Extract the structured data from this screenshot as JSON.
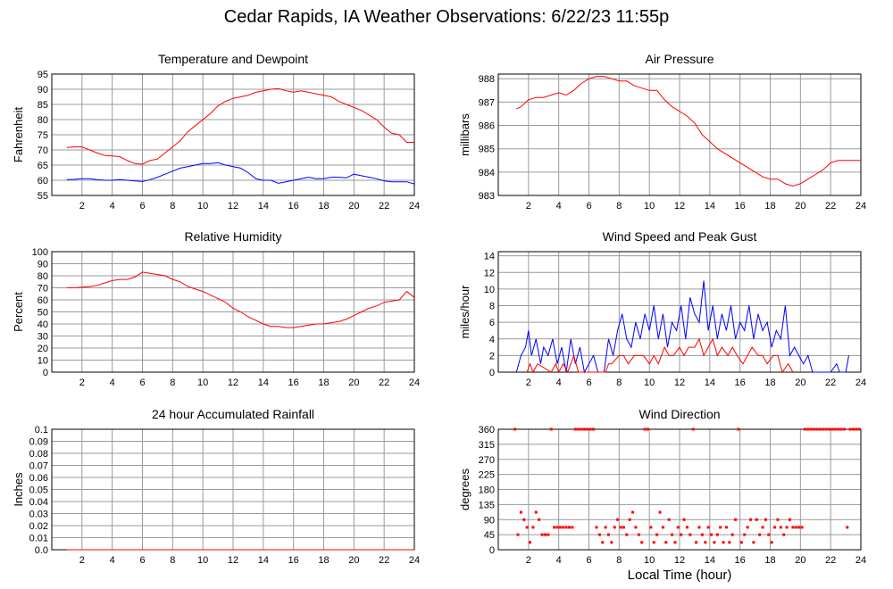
{
  "page": {
    "title": "Cedar Rapids, IA Weather Observations: 6/22/23 11:55p",
    "x_axis_title": "Local Time (hour)"
  },
  "colors": {
    "red": "#ff0000",
    "blue": "#0000ff",
    "grid": "#9a9a9a"
  },
  "chart_data": [
    {
      "id": "temp",
      "type": "line",
      "title": "Temperature and Dewpoint",
      "xlabel": "",
      "ylabel": "Fahrenheit",
      "xlim": [
        0,
        24
      ],
      "ylim": [
        55,
        95
      ],
      "yticks": [
        "55",
        "60",
        "65",
        "70",
        "75",
        "80",
        "85",
        "90",
        "95"
      ],
      "xticks": [
        "2",
        "4",
        "6",
        "8",
        "10",
        "12",
        "14",
        "16",
        "18",
        "20",
        "22",
        "24"
      ],
      "series": [
        {
          "color": "red",
          "x": [
            1,
            1.5,
            2,
            2.5,
            3,
            3.5,
            4,
            4.5,
            5,
            5.5,
            6,
            6.5,
            7,
            7.5,
            8,
            8.5,
            9,
            9.5,
            10,
            10.5,
            11,
            11.5,
            12,
            12.5,
            13,
            13.5,
            14,
            14.5,
            15,
            15.5,
            16,
            16.5,
            17,
            17.5,
            18,
            18.5,
            19,
            19.5,
            20,
            20.5,
            21,
            21.5,
            22,
            22.5,
            23,
            23.5,
            24
          ],
          "y": [
            70.8,
            71,
            71,
            70,
            69,
            68.2,
            68,
            67.8,
            66.5,
            65.5,
            65.3,
            66.5,
            67,
            69,
            71,
            73,
            76,
            78,
            80,
            82,
            84.5,
            86,
            87,
            87.5,
            88,
            89,
            89.5,
            90,
            90.2,
            89.5,
            89,
            89.5,
            89,
            88.5,
            88,
            87.5,
            86,
            85,
            84,
            83,
            81.5,
            80,
            77.5,
            75.5,
            75,
            72.5,
            72.5
          ]
        },
        {
          "color": "blue",
          "x": [
            1,
            1.5,
            2,
            2.5,
            3,
            3.5,
            4,
            4.5,
            5,
            5.5,
            6,
            6.5,
            7,
            7.5,
            8,
            8.5,
            9,
            9.5,
            10,
            10.5,
            11,
            11.5,
            12,
            12.5,
            13,
            13.5,
            14,
            14.5,
            15,
            15.5,
            16,
            16.5,
            17,
            17.5,
            18,
            18.5,
            19,
            19.5,
            20,
            20.5,
            21,
            21.5,
            22,
            22.5,
            23,
            23.5,
            24
          ],
          "y": [
            60.2,
            60.3,
            60.5,
            60.5,
            60.2,
            60,
            60,
            60.2,
            60,
            59.8,
            59.6,
            60.2,
            61,
            62,
            63,
            64,
            64.5,
            65,
            65.5,
            65.5,
            65.8,
            65,
            64.5,
            64,
            62.5,
            60.5,
            60,
            60,
            59,
            59.5,
            60,
            60.5,
            61,
            60.5,
            60.5,
            61,
            61,
            60.8,
            62,
            61.5,
            61,
            60.5,
            59.8,
            59.5,
            59.5,
            59.5,
            58.8
          ]
        }
      ]
    },
    {
      "id": "pressure",
      "type": "line",
      "title": "Air Pressure",
      "xlabel": "",
      "ylabel": "millibars",
      "xlim": [
        0,
        24
      ],
      "ylim": [
        983,
        988.2
      ],
      "yticks": [
        "983",
        "984",
        "985",
        "986",
        "987",
        "988"
      ],
      "xticks": [
        "2",
        "4",
        "6",
        "8",
        "10",
        "12",
        "14",
        "16",
        "18",
        "20",
        "22",
        "24"
      ],
      "series": [
        {
          "color": "red",
          "x": [
            1.2,
            1.5,
            2,
            2.5,
            3,
            3.5,
            4,
            4.5,
            5,
            5.5,
            6,
            6.5,
            7,
            7.5,
            8,
            8.5,
            9,
            9.5,
            10,
            10.5,
            11,
            11.5,
            12,
            12.5,
            13,
            13.5,
            14,
            14.5,
            15,
            15.5,
            16,
            16.5,
            17,
            17.5,
            18,
            18.5,
            19,
            19.5,
            20,
            20.5,
            21,
            21.5,
            22,
            22.5,
            23,
            23.5,
            24
          ],
          "y": [
            986.7,
            986.8,
            987.1,
            987.2,
            987.2,
            987.3,
            987.4,
            987.3,
            987.5,
            987.8,
            988,
            988.1,
            988.1,
            988,
            987.9,
            987.9,
            987.7,
            987.6,
            987.5,
            987.5,
            987.1,
            986.8,
            986.6,
            986.4,
            986.1,
            985.6,
            985.3,
            985,
            984.8,
            984.6,
            984.4,
            984.2,
            984,
            983.8,
            983.7,
            983.7,
            983.5,
            983.4,
            983.5,
            983.7,
            983.9,
            984.1,
            984.4,
            984.5,
            984.5,
            984.5,
            984.5
          ]
        }
      ]
    },
    {
      "id": "humidity",
      "type": "line",
      "title": "Relative Humidity",
      "xlabel": "",
      "ylabel": "Percent",
      "xlim": [
        0,
        24
      ],
      "ylim": [
        0,
        100
      ],
      "yticks": [
        "0",
        "10",
        "20",
        "30",
        "40",
        "50",
        "60",
        "70",
        "80",
        "90",
        "100"
      ],
      "xticks": [
        "2",
        "4",
        "6",
        "8",
        "10",
        "12",
        "14",
        "16",
        "18",
        "20",
        "22",
        "24"
      ],
      "series": [
        {
          "color": "red",
          "x": [
            1,
            1.5,
            2,
            2.5,
            3,
            3.5,
            4,
            4.5,
            5,
            5.5,
            6,
            6.5,
            7,
            7.5,
            8,
            8.5,
            9,
            9.5,
            10,
            10.5,
            11,
            11.5,
            12,
            12.5,
            13,
            13.5,
            14,
            14.5,
            15,
            15.5,
            16,
            16.5,
            17,
            17.5,
            18,
            18.5,
            19,
            19.5,
            20,
            20.5,
            21,
            21.5,
            22,
            22.5,
            23,
            23.5,
            24
          ],
          "y": [
            70,
            70,
            70.5,
            71,
            72,
            74,
            76,
            77,
            77,
            79,
            83,
            82,
            81,
            80,
            77,
            75,
            71,
            69,
            67,
            64,
            61,
            58,
            53,
            50,
            46,
            43,
            40,
            38,
            38,
            37,
            37,
            38,
            39,
            40,
            40,
            41,
            42,
            44,
            47,
            50,
            53,
            55,
            58,
            59,
            60,
            67,
            62
          ]
        }
      ]
    },
    {
      "id": "wind",
      "type": "line",
      "title": "Wind Speed and Peak Gust",
      "xlabel": "",
      "ylabel": "miles/hour",
      "xlim": [
        0,
        24
      ],
      "ylim": [
        0,
        14.5
      ],
      "yticks": [
        "0",
        "2",
        "4",
        "6",
        "8",
        "10",
        "12",
        "14"
      ],
      "xticks": [
        "2",
        "4",
        "6",
        "8",
        "10",
        "12",
        "14",
        "16",
        "18",
        "20",
        "22",
        "24"
      ],
      "series": [
        {
          "color": "blue",
          "x": [
            1.2,
            1.5,
            1.8,
            2,
            2.2,
            2.5,
            2.8,
            3,
            3.3,
            3.6,
            3.9,
            4.2,
            4.5,
            4.8,
            5.1,
            5.4,
            5.7,
            6,
            6.3,
            6.6,
            7,
            7.3,
            7.6,
            7.9,
            8.2,
            8.5,
            8.8,
            9.1,
            9.4,
            9.7,
            10,
            10.3,
            10.6,
            10.9,
            11.2,
            11.5,
            11.8,
            12.1,
            12.4,
            12.7,
            13,
            13.3,
            13.6,
            13.9,
            14.2,
            14.5,
            14.8,
            15.1,
            15.4,
            15.7,
            16,
            16.3,
            16.6,
            16.9,
            17.2,
            17.5,
            17.8,
            18.1,
            18.4,
            18.7,
            19,
            19.3,
            19.6,
            19.9,
            20.2,
            20.5,
            20.8,
            21,
            22,
            22.4,
            22.6,
            23,
            23.2
          ],
          "y": [
            0,
            2,
            3,
            5,
            2,
            4,
            1,
            3,
            2,
            4,
            1,
            3,
            0,
            4,
            1,
            3,
            0,
            1,
            2,
            0,
            0,
            4,
            2,
            5,
            7,
            4,
            3,
            6,
            4,
            7,
            5,
            8,
            4,
            7,
            3,
            6,
            5,
            8,
            4,
            9,
            7,
            6,
            11,
            5,
            8,
            4,
            7,
            5,
            8,
            4,
            6,
            5,
            8,
            4,
            7,
            5,
            6,
            3,
            5,
            4,
            8,
            2,
            3,
            2,
            1,
            2,
            0,
            0,
            0,
            1,
            0,
            0,
            2
          ]
        },
        {
          "color": "red",
          "x": [
            1.9,
            2.1,
            2.3,
            2.6,
            3.5,
            3.8,
            4,
            4.3,
            4.6,
            5,
            5.3,
            7.1,
            7.3,
            7.5,
            8,
            8.3,
            8.6,
            9,
            9.3,
            9.6,
            10,
            10.3,
            10.6,
            11,
            11.3,
            11.6,
            12,
            12.3,
            12.6,
            13,
            13.3,
            13.6,
            13.9,
            14.2,
            14.5,
            14.8,
            15.2,
            15.5,
            15.8,
            16.2,
            16.5,
            16.8,
            17.2,
            17.5,
            17.8,
            18.2,
            18.5,
            18.8,
            19.2,
            19.5
          ],
          "y": [
            0,
            1,
            0,
            1,
            0,
            1,
            0,
            1,
            0,
            2,
            0,
            0,
            1,
            1,
            2,
            2,
            1,
            2,
            2,
            2,
            1,
            2,
            1,
            3,
            2,
            2,
            3,
            2,
            3,
            3,
            4,
            2,
            3,
            4,
            2,
            3,
            2,
            3,
            2,
            1,
            2,
            3,
            2,
            2,
            1,
            2,
            2,
            0,
            1,
            0
          ]
        }
      ]
    },
    {
      "id": "rain",
      "type": "line",
      "title": "24 hour Accumulated Rainfall",
      "xlabel": "",
      "ylabel": "Inches",
      "xlim": [
        0,
        24
      ],
      "ylim": [
        0,
        0.1
      ],
      "yticks": [
        "0.0",
        "0.01",
        "0.02",
        "0.03",
        "0.04",
        "0.05",
        "0.06",
        "0.07",
        "0.08",
        "0.09",
        "0.1"
      ],
      "xticks": [
        "2",
        "4",
        "6",
        "8",
        "10",
        "12",
        "14",
        "16",
        "18",
        "20",
        "22",
        "24"
      ],
      "series": [
        {
          "color": "red",
          "x": [
            1,
            24
          ],
          "y": [
            0,
            0
          ]
        }
      ]
    },
    {
      "id": "direction",
      "type": "scatter",
      "title": "Wind Direction",
      "xlabel": "Local Time (hour)",
      "ylabel": "degrees",
      "xlim": [
        0,
        24
      ],
      "ylim": [
        0,
        360
      ],
      "yticks": [
        "0",
        "45",
        "90",
        "135",
        "180",
        "225",
        "270",
        "315",
        "360"
      ],
      "xticks": [
        "2",
        "4",
        "6",
        "8",
        "10",
        "12",
        "14",
        "16",
        "18",
        "20",
        "22",
        "24"
      ],
      "series": [
        {
          "color": "red",
          "x": [
            1.1,
            1.3,
            1.5,
            1.7,
            1.9,
            2.1,
            2.3,
            2.5,
            2.7,
            2.9,
            3.1,
            3.3,
            3.5,
            3.7,
            3.9,
            4.1,
            4.3,
            4.5,
            4.7,
            4.9,
            5.1,
            5.3,
            5.5,
            5.7,
            5.9,
            6.1,
            6.3,
            6.5,
            6.7,
            6.9,
            7.1,
            7.3,
            7.5,
            7.7,
            7.9,
            8.1,
            8.3,
            8.5,
            8.7,
            8.9,
            9.1,
            9.3,
            9.5,
            9.7,
            9.9,
            10.1,
            10.3,
            10.5,
            10.7,
            10.9,
            11.1,
            11.3,
            11.5,
            11.7,
            11.9,
            12.1,
            12.3,
            12.5,
            12.7,
            12.9,
            13.1,
            13.3,
            13.5,
            13.7,
            13.9,
            14.1,
            14.3,
            14.5,
            14.7,
            14.9,
            15.1,
            15.3,
            15.5,
            15.7,
            15.9,
            16.1,
            16.3,
            16.5,
            16.7,
            16.9,
            17.1,
            17.3,
            17.5,
            17.7,
            17.9,
            18.1,
            18.3,
            18.5,
            18.7,
            18.9,
            19.1,
            19.3,
            19.5,
            19.7,
            19.9,
            20.1,
            20.3,
            20.5,
            20.7,
            20.9,
            21.1,
            21.3,
            21.5,
            21.7,
            21.9,
            22.1,
            22.3,
            22.5,
            22.7,
            22.9,
            23.1,
            23.3,
            23.5,
            23.7,
            23.9
          ],
          "y": [
            360,
            45,
            112,
            90,
            67,
            22,
            67,
            112,
            90,
            45,
            45,
            45,
            360,
            67,
            67,
            67,
            67,
            67,
            67,
            67,
            360,
            360,
            360,
            360,
            360,
            360,
            360,
            67,
            45,
            22,
            67,
            45,
            22,
            67,
            90,
            67,
            67,
            45,
            90,
            112,
            67,
            45,
            22,
            360,
            360,
            67,
            22,
            45,
            112,
            67,
            22,
            90,
            45,
            22,
            67,
            45,
            90,
            67,
            45,
            360,
            22,
            67,
            45,
            22,
            67,
            45,
            22,
            45,
            67,
            22,
            67,
            22,
            45,
            90,
            360,
            22,
            45,
            67,
            90,
            22,
            90,
            45,
            67,
            90,
            45,
            22,
            67,
            90,
            67,
            45,
            67,
            90,
            67,
            67,
            67,
            67,
            360,
            360,
            360,
            360,
            360,
            360,
            360,
            360,
            360,
            360,
            360,
            360,
            360,
            360,
            67,
            360,
            360,
            360,
            360
          ]
        }
      ]
    }
  ]
}
